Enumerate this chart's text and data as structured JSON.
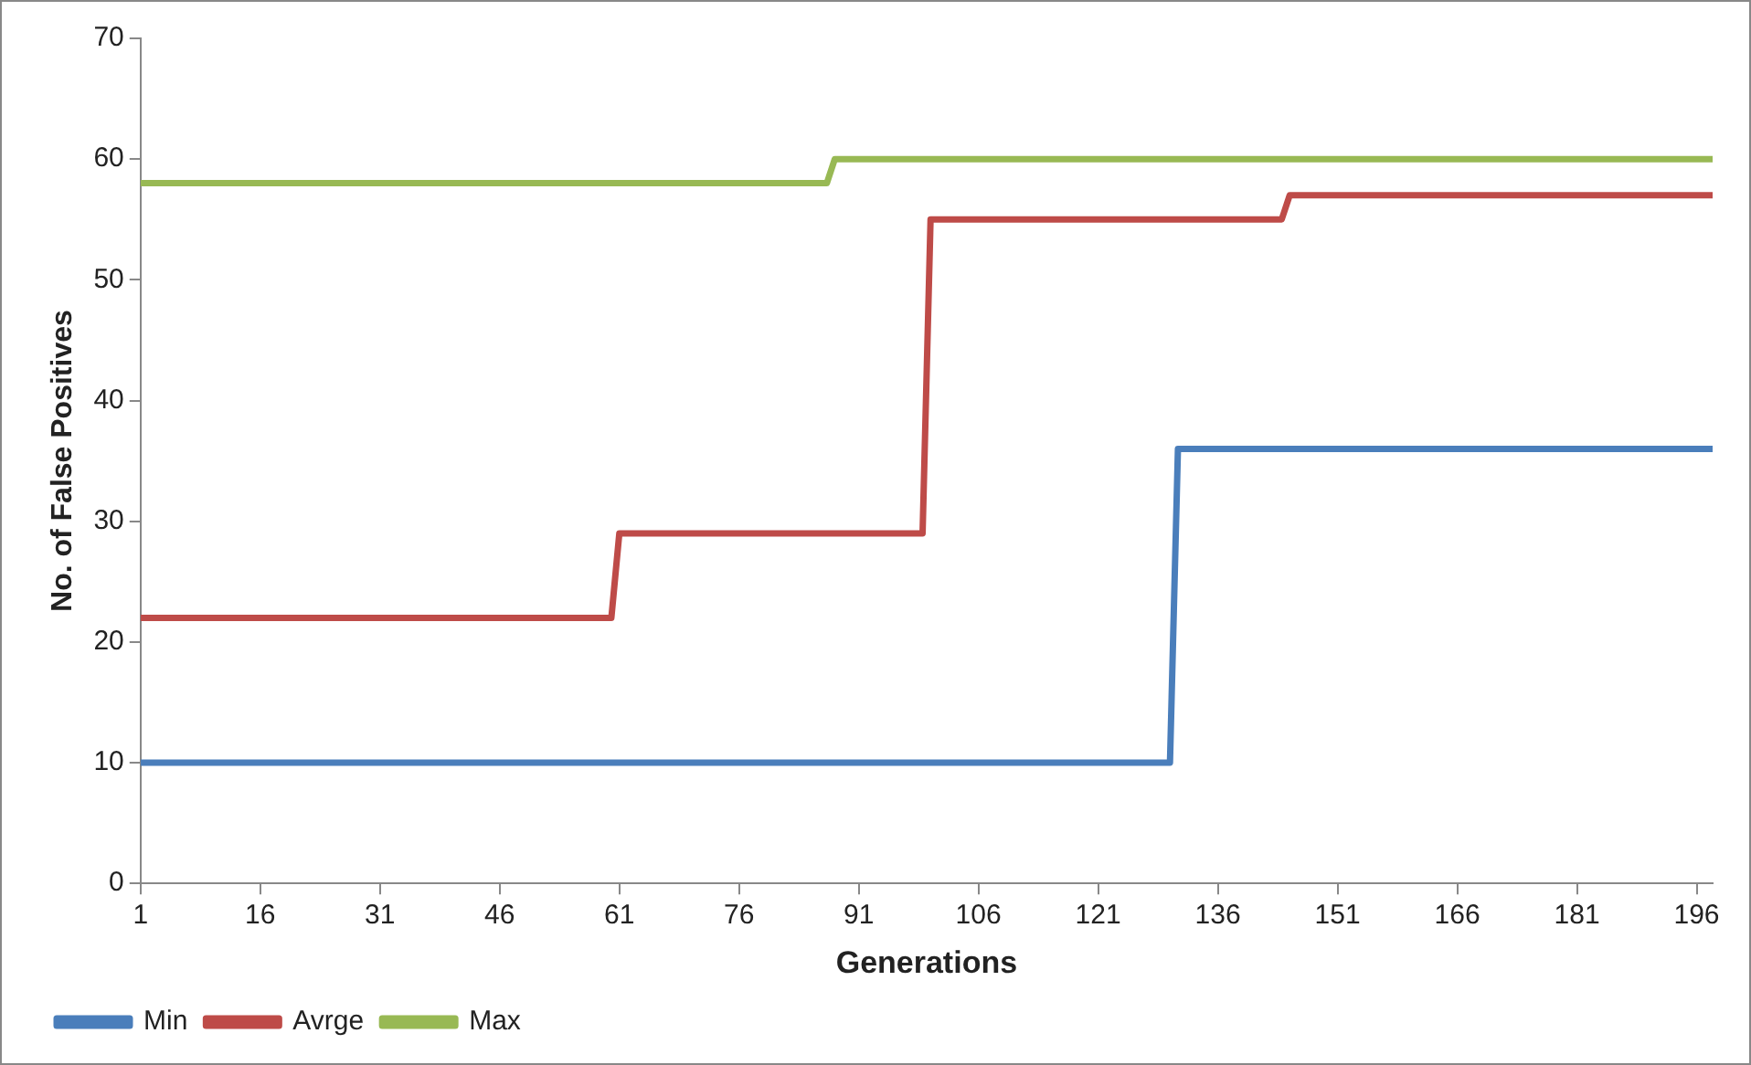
{
  "chart_data": {
    "type": "line",
    "xlabel": "Generations",
    "ylabel": "No. of False Positives",
    "xlim": [
      1,
      198
    ],
    "xticks": [
      1,
      16,
      31,
      46,
      61,
      76,
      91,
      106,
      121,
      136,
      151,
      166,
      181,
      196
    ],
    "ylim": [
      0,
      70
    ],
    "yticks": [
      0,
      10,
      20,
      30,
      40,
      50,
      60,
      70
    ],
    "grid": false,
    "legend": "bottom left",
    "marker": "none",
    "line_style": "solid",
    "series": [
      {
        "name": "Min",
        "color": "#4a7ebb",
        "x": [
          1,
          130,
          131,
          198
        ],
        "values": [
          10,
          10,
          36,
          36
        ]
      },
      {
        "name": "Avrge",
        "color": "#be4b48",
        "x": [
          1,
          60,
          61,
          99,
          100,
          144,
          145,
          198
        ],
        "values": [
          22,
          22,
          29,
          29,
          55,
          55,
          57,
          57
        ]
      },
      {
        "name": "Max",
        "color": "#98b954",
        "x": [
          1,
          87,
          88,
          198
        ],
        "values": [
          58,
          58,
          60,
          60
        ]
      }
    ]
  }
}
